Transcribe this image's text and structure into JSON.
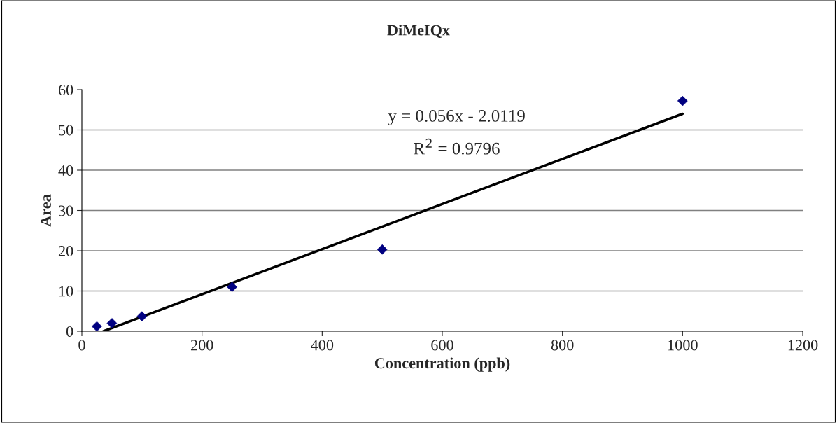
{
  "chart_data": {
    "type": "scatter",
    "title": "DiMeIQx",
    "xlabel": "Concentration (ppb)",
    "ylabel": "Area",
    "x": [
      25,
      50,
      100,
      250,
      500,
      1000
    ],
    "series": [
      {
        "color": "#000080",
        "marker": "diamond",
        "values": [
          1.2,
          2.0,
          3.7,
          11.0,
          20.3,
          57.2
        ]
      },
      {
        "type": "line",
        "color": "#000000",
        "marker": "none",
        "line_style": "solid",
        "x": [
          36,
          1000
        ],
        "values": [
          0.0,
          54.0
        ]
      }
    ],
    "annotations": [
      {
        "text": "y = 0.056x - 2.0119"
      },
      {
        "text": "R$^{2}$ = 0.9796"
      }
    ],
    "xlim": [
      0,
      1200
    ],
    "xticks": [
      0,
      200,
      400,
      600,
      800,
      1000,
      1200
    ],
    "ylim": [
      0,
      60
    ],
    "yticks": [
      0,
      10,
      20,
      30,
      40,
      50,
      60
    ],
    "grid": "y"
  }
}
